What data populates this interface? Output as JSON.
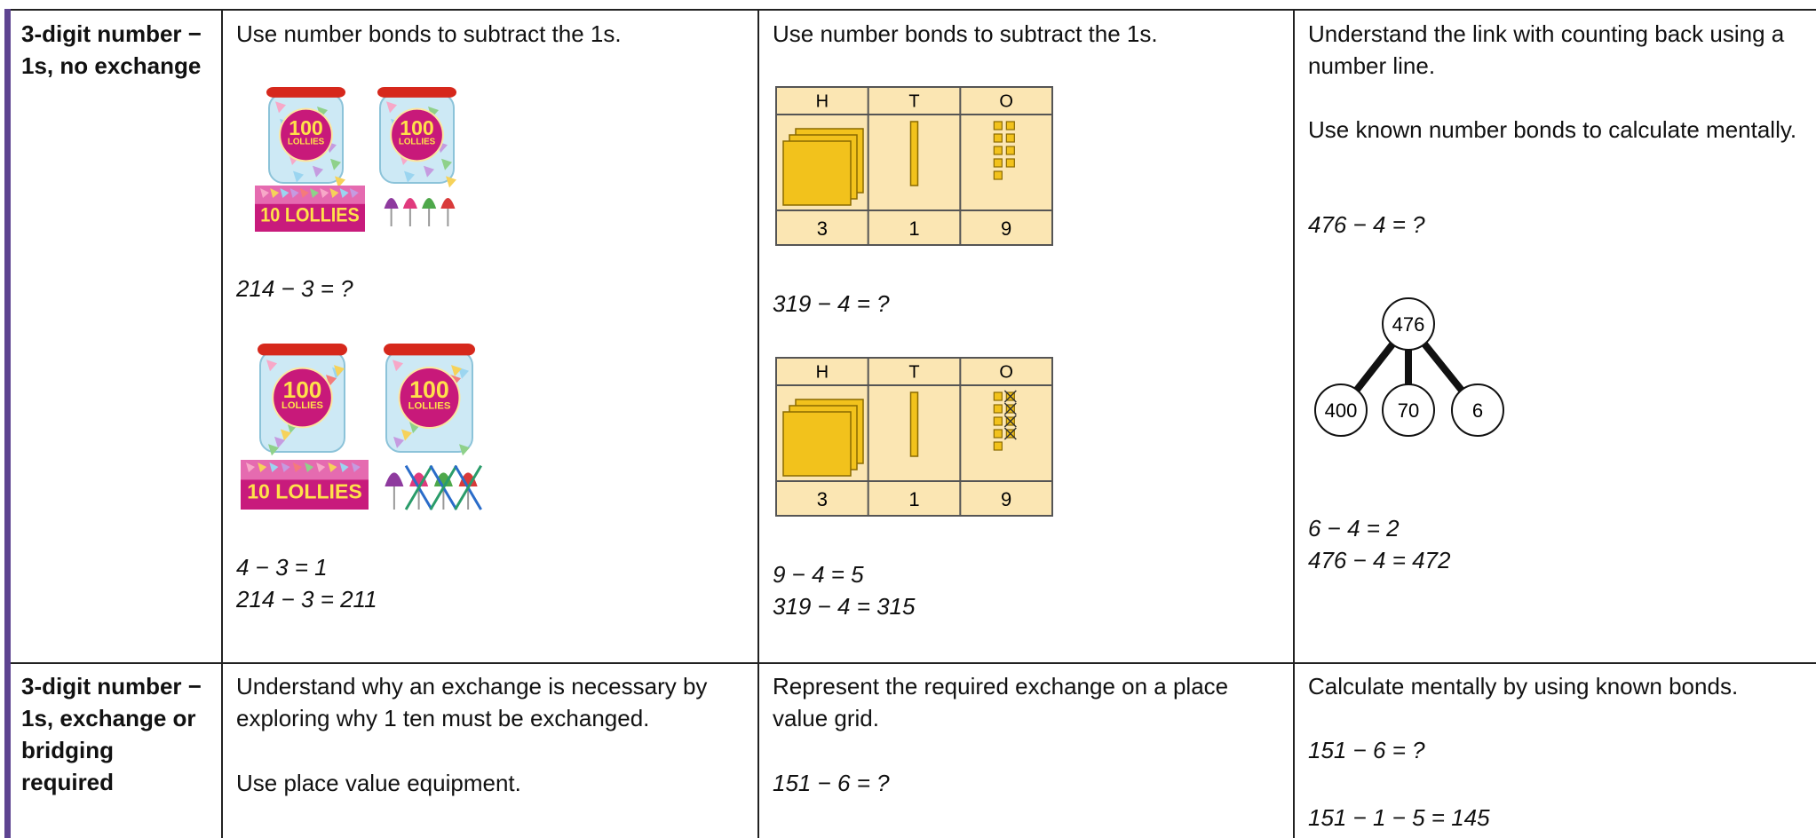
{
  "table": {
    "rows": [
      {
        "heading": "3-digit number − 1s, no exchange",
        "cells": [
          {
            "intro": "Use number bonds to subtract the 1s.",
            "jar": {
              "number": "100",
              "word": "LOLLIES"
            },
            "pack": "10 LOLLIES",
            "question": "214 − 3 = ?",
            "working": [
              "4 − 3 = 1",
              "214 − 3 = 211"
            ]
          },
          {
            "intro": "Use number bonds to subtract the 1s.",
            "grid": {
              "headers": [
                "H",
                "T",
                "O"
              ],
              "digits": [
                "3",
                "1",
                "9"
              ]
            },
            "question": "319 − 4 = ?",
            "working": [
              "9 − 4 = 5",
              "319 − 4 = 315"
            ]
          },
          {
            "paragraphs": [
              "Understand the link with counting back using a number line.",
              "Use known number bonds to calculate mentally."
            ],
            "question": "476 − 4 = ?",
            "part_whole": {
              "whole": "476",
              "parts": [
                "400",
                "70",
                "6"
              ]
            },
            "working": [
              "6 − 4 = 2",
              "476 − 4 = 472"
            ]
          }
        ]
      },
      {
        "heading": "3-digit number − 1s, exchange or bridging required",
        "cells": [
          {
            "paragraphs": [
              "Understand why an exchange is necessary by exploring why 1 ten must be exchanged.",
              "Use place value equipment."
            ]
          },
          {
            "paragraphs": [
              "Represent the required exchange on a place value grid."
            ],
            "question": "151 − 6 = ?"
          },
          {
            "paragraphs": [
              "Calculate mentally by using known bonds."
            ],
            "question": "151 − 6 = ?",
            "working": [
              "151 − 1 − 5 = 145"
            ]
          }
        ]
      }
    ]
  }
}
